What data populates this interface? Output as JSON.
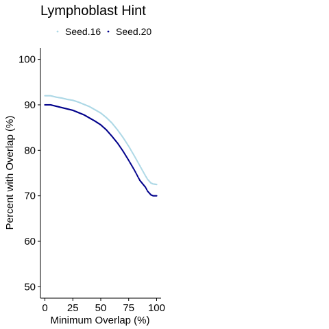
{
  "chart_data": {
    "type": "scatter",
    "title": "Lymphoblast Hint",
    "xlabel": "Minimum Overlap (%)",
    "ylabel": "Percent with Overlap (%)",
    "xlim": [
      -4,
      104
    ],
    "ylim": [
      47.5,
      102.5
    ],
    "x_ticks": [
      0,
      25,
      50,
      75,
      100
    ],
    "y_ticks": [
      50,
      60,
      70,
      80,
      90,
      100
    ],
    "grid": false,
    "legend_position": "top",
    "series": [
      {
        "name": "Seed.16",
        "color": "#add8e6",
        "points": [
          [
            0,
            92.0
          ],
          [
            5,
            92.0
          ],
          [
            10,
            91.7
          ],
          [
            15,
            91.5
          ],
          [
            20,
            91.2
          ],
          [
            25,
            91.0
          ],
          [
            30,
            90.6
          ],
          [
            35,
            90.1
          ],
          [
            40,
            89.6
          ],
          [
            45,
            88.9
          ],
          [
            50,
            88.2
          ],
          [
            55,
            87.2
          ],
          [
            60,
            86.0
          ],
          [
            65,
            84.5
          ],
          [
            70,
            82.8
          ],
          [
            75,
            80.9
          ],
          [
            80,
            78.8
          ],
          [
            85,
            76.6
          ],
          [
            90,
            74.4
          ],
          [
            92,
            73.6
          ],
          [
            95,
            72.8
          ],
          [
            97,
            72.6
          ],
          [
            100,
            72.5
          ]
        ]
      },
      {
        "name": "Seed.20",
        "color": "#00008b",
        "points": [
          [
            0,
            90.0
          ],
          [
            5,
            90.0
          ],
          [
            10,
            89.7
          ],
          [
            15,
            89.4
          ],
          [
            20,
            89.1
          ],
          [
            25,
            88.8
          ],
          [
            30,
            88.3
          ],
          [
            35,
            87.8
          ],
          [
            40,
            87.1
          ],
          [
            45,
            86.4
          ],
          [
            50,
            85.6
          ],
          [
            55,
            84.5
          ],
          [
            60,
            83.1
          ],
          [
            65,
            81.6
          ],
          [
            70,
            79.8
          ],
          [
            75,
            77.8
          ],
          [
            80,
            75.7
          ],
          [
            85,
            73.4
          ],
          [
            90,
            71.9
          ],
          [
            92,
            71.0
          ],
          [
            95,
            70.2
          ],
          [
            97,
            70.0
          ],
          [
            100,
            70.0
          ]
        ]
      }
    ]
  }
}
